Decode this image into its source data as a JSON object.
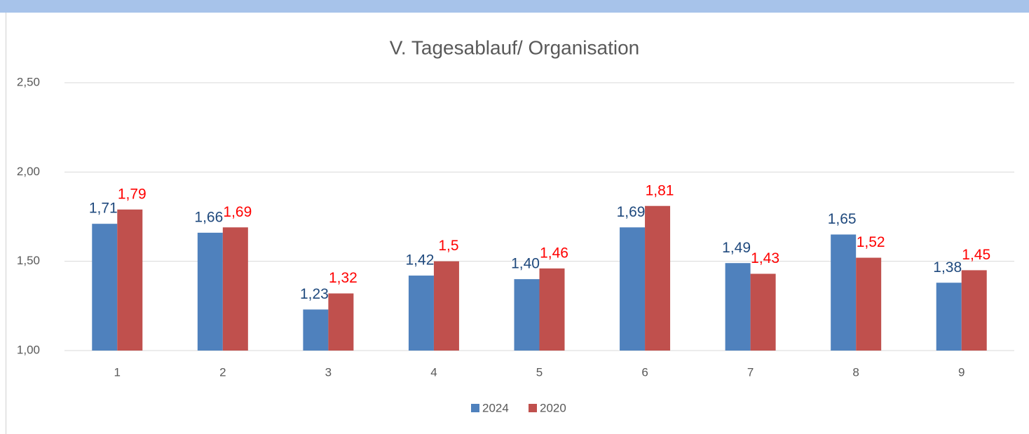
{
  "chart_data": {
    "type": "bar",
    "title": "V. Tagesablauf/ Organisation",
    "categories": [
      "1",
      "2",
      "3",
      "4",
      "5",
      "6",
      "7",
      "8",
      "9"
    ],
    "series": [
      {
        "name": "2024",
        "color": "#4f81bd",
        "label_color": "#1f497d",
        "values": [
          1.71,
          1.66,
          1.23,
          1.42,
          1.4,
          1.69,
          1.49,
          1.65,
          1.38
        ],
        "value_labels": [
          "1,71",
          "1,66",
          "1,23",
          "1,42",
          "1,40",
          "1,69",
          "1,49",
          "1,65",
          "1,38"
        ]
      },
      {
        "name": "2020",
        "color": "#c0504d",
        "label_color": "#ff0000",
        "values": [
          1.79,
          1.69,
          1.32,
          1.5,
          1.46,
          1.81,
          1.43,
          1.52,
          1.45
        ],
        "value_labels": [
          "1,79",
          "1,69",
          "1,32",
          "1,5",
          "1,46",
          "1,81",
          "1,43",
          "1,52",
          "1,45"
        ]
      }
    ],
    "ylim": [
      1,
      2.5
    ],
    "yticks": [
      {
        "value": 1,
        "label": "1,00"
      },
      {
        "value": 1.5,
        "label": "1,50"
      },
      {
        "value": 2,
        "label": "2,00"
      },
      {
        "value": 2.5,
        "label": "2,50"
      }
    ],
    "grid": true,
    "legend": "bottom"
  }
}
